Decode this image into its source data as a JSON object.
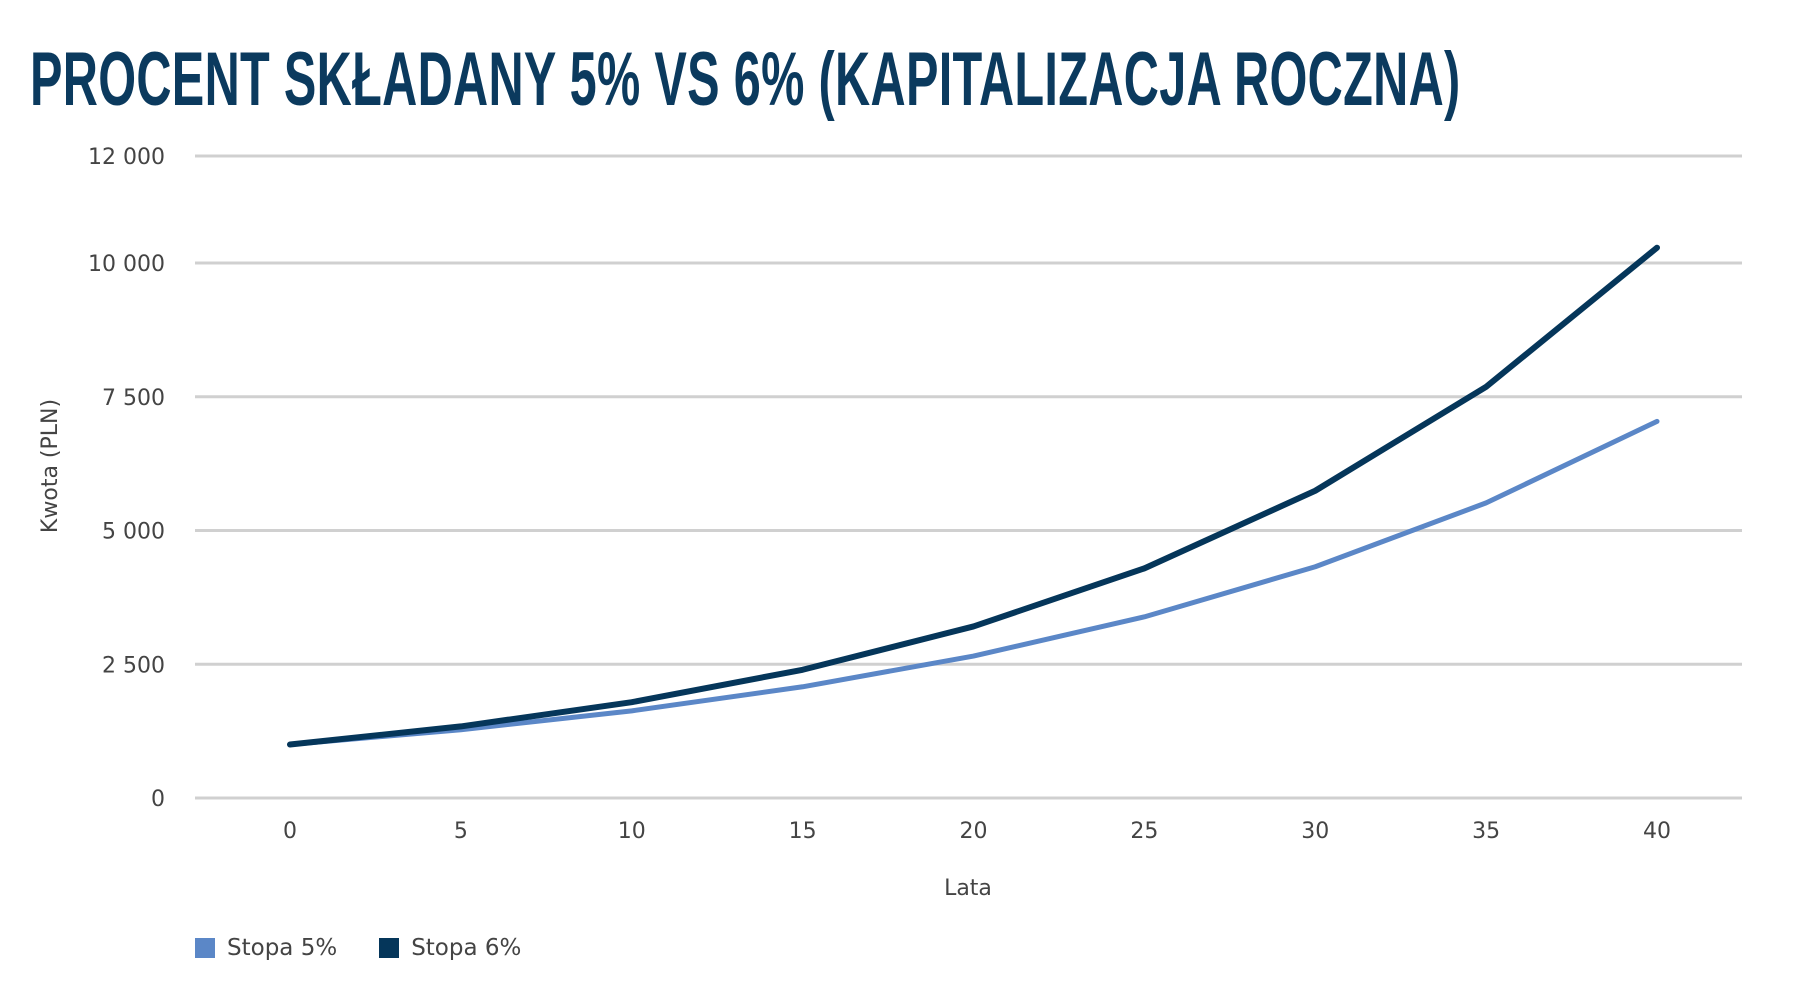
{
  "chart_data": {
    "type": "line",
    "title": "PROCENT SKŁADANY 5% VS 6% (KAPITALIZACJA ROCZNA)",
    "xlabel": "Lata",
    "ylabel": "Kwota (PLN)",
    "x": [
      0,
      5,
      10,
      15,
      20,
      25,
      30,
      35,
      40
    ],
    "x_tick_labels": [
      "0",
      "5",
      "10",
      "15",
      "20",
      "25",
      "30",
      "35",
      "40"
    ],
    "ylim": [
      0,
      12000
    ],
    "y_ticks": [
      0,
      2500,
      5000,
      7500,
      10000,
      12000
    ],
    "y_tick_labels": [
      "0",
      "2 500",
      "5 000",
      "7 500",
      "10 000",
      "12 000"
    ],
    "grid": true,
    "legend_position": "bottom-left",
    "series": [
      {
        "name": "Stopa 5%",
        "color": "#5b87c7",
        "values": [
          1000,
          1276,
          1629,
          2079,
          2653,
          3386,
          4322,
          5516,
          7040
        ]
      },
      {
        "name": "Stopa 6%",
        "color": "#05365a",
        "values": [
          1000,
          1338,
          1791,
          2397,
          3207,
          4292,
          5743,
          7686,
          10286
        ]
      }
    ]
  }
}
